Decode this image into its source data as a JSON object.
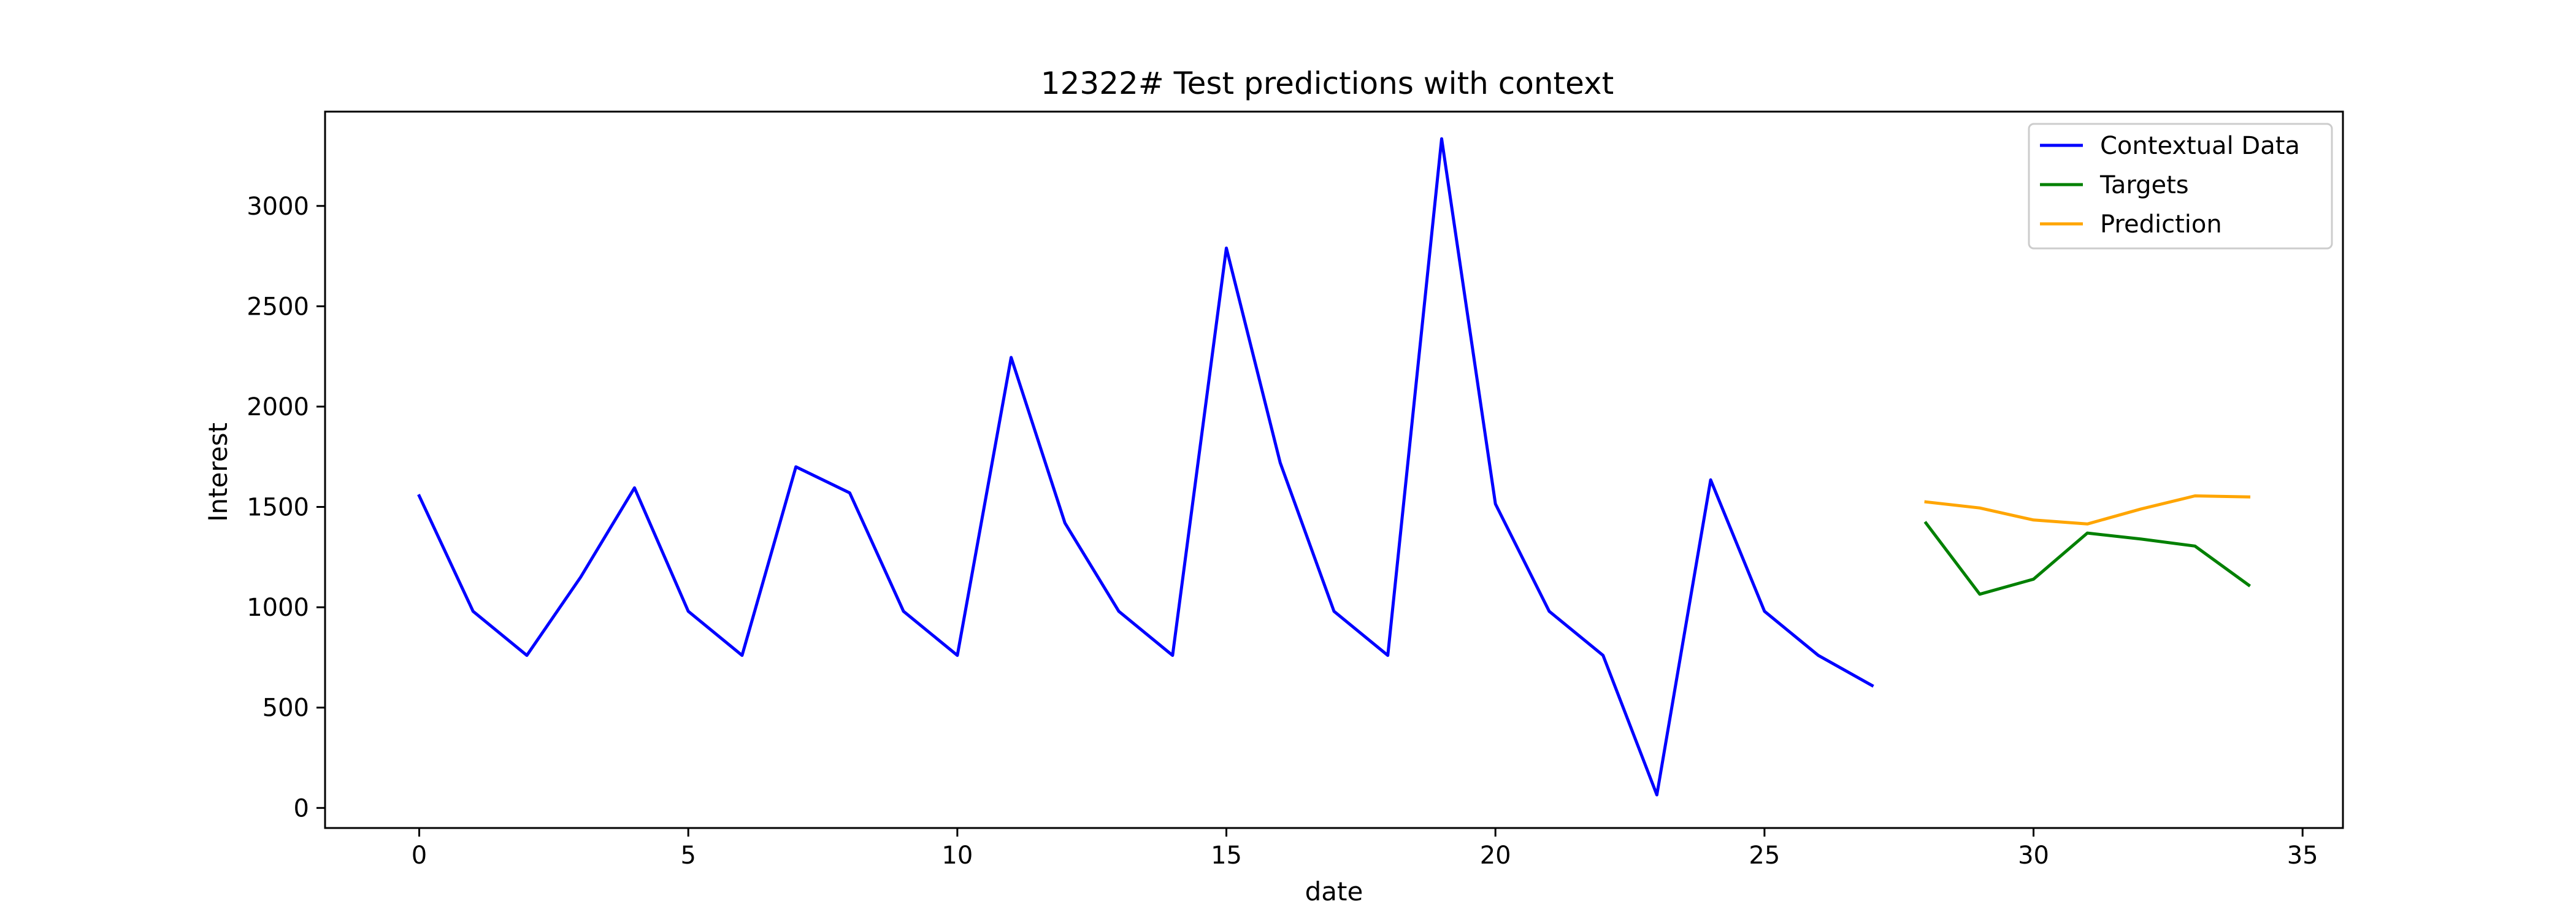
{
  "chart_data": {
    "type": "line",
    "title": "12322# Test predictions with context",
    "xlabel": "date",
    "ylabel": "Interest",
    "xlim": [
      -1.75,
      35.75
    ],
    "ylim": [
      -100,
      3470
    ],
    "xticks": [
      0,
      5,
      10,
      15,
      20,
      25,
      30,
      35
    ],
    "yticks": [
      0,
      500,
      1000,
      1500,
      2000,
      2500,
      3000
    ],
    "grid": false,
    "legend_position": "top-right",
    "series": [
      {
        "name": "Contextual Data",
        "color": "#0000ff",
        "x": [
          0,
          1,
          2,
          3,
          4,
          5,
          6,
          7,
          8,
          9,
          10,
          11,
          12,
          13,
          14,
          15,
          16,
          17,
          18,
          19,
          20,
          21,
          22,
          23,
          24,
          25,
          26,
          27
        ],
        "values": [
          1555,
          980,
          760,
          1150,
          1595,
          980,
          760,
          1700,
          1570,
          980,
          760,
          2245,
          1420,
          980,
          760,
          2790,
          1720,
          980,
          760,
          3335,
          1515,
          980,
          760,
          65,
          1635,
          980,
          760,
          610
        ]
      },
      {
        "name": "Targets",
        "color": "#008000",
        "x": [
          28,
          29,
          30,
          31,
          32,
          33,
          34
        ],
        "values": [
          1420,
          1065,
          1140,
          1370,
          1340,
          1305,
          1110
        ]
      },
      {
        "name": "Prediction",
        "color": "#ffa500",
        "x": [
          28,
          29,
          30,
          31,
          32,
          33,
          34
        ],
        "values": [
          1525,
          1495,
          1435,
          1415,
          1490,
          1555,
          1550
        ]
      }
    ]
  }
}
